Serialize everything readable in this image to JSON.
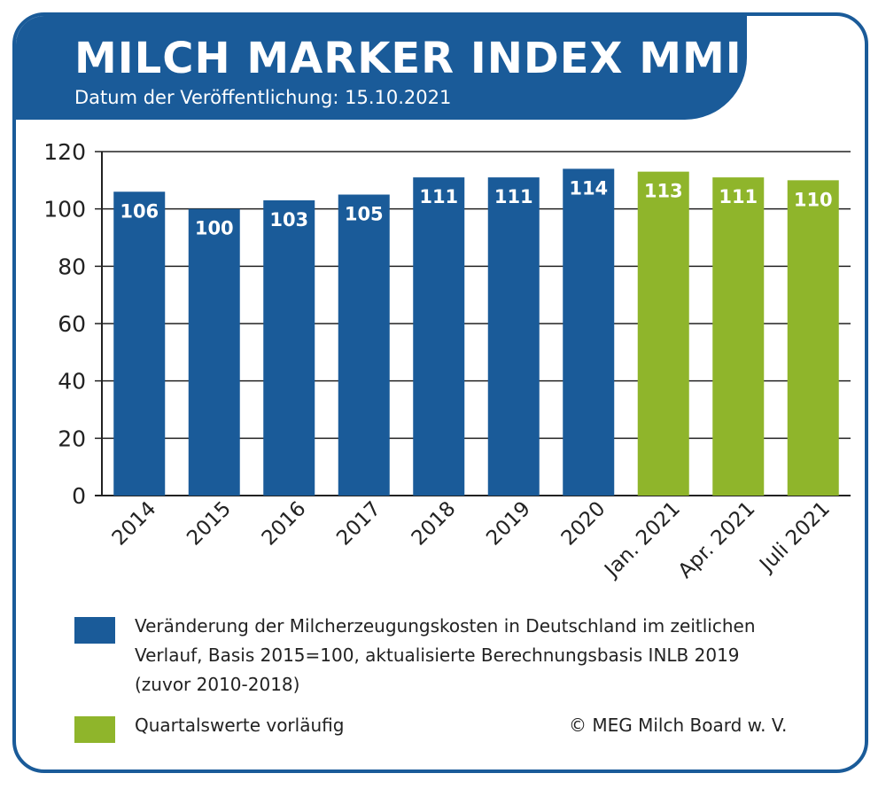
{
  "header": {
    "title": "MILCH MARKER INDEX MMI",
    "subtitle": "Datum der Veröffentlichung: 15.10.2021"
  },
  "colors": {
    "frame": "#1a5b99",
    "actual": "#1a5b99",
    "provisional": "#8fb52b",
    "grid": "#222222"
  },
  "chart_data": {
    "type": "bar",
    "categories": [
      "2014",
      "2015",
      "2016",
      "2017",
      "2018",
      "2019",
      "2020",
      "Jan. 2021",
      "Apr. 2021",
      "Juli 2021"
    ],
    "values": [
      106,
      100,
      103,
      105,
      111,
      111,
      114,
      113,
      111,
      110
    ],
    "data_labels": [
      "106",
      "100",
      "103",
      "105",
      "111",
      "111",
      "114",
      "113",
      "111",
      "110"
    ],
    "bar_colors": [
      "#1a5b99",
      "#1a5b99",
      "#1a5b99",
      "#1a5b99",
      "#1a5b99",
      "#1a5b99",
      "#1a5b99",
      "#8fb52b",
      "#8fb52b",
      "#8fb52b"
    ],
    "ylim": [
      0,
      120
    ],
    "yticks": [
      0,
      20,
      40,
      60,
      80,
      100,
      120
    ],
    "grid": true,
    "title": "MILCH MARKER INDEX MMI",
    "xlabel": "",
    "ylabel": ""
  },
  "legend": [
    {
      "color": "#1a5b99",
      "text_lines": [
        "Veränderung der Milcherzeugungskosten in Deutschland im zeitlichen",
        "Verlauf, Basis 2015=100, aktualisierte Berechnungsbasis INLB 2019",
        "(zuvor 2010-2018)"
      ]
    },
    {
      "color": "#8fb52b",
      "text_lines": [
        "Quartalswerte vorläufig"
      ]
    }
  ],
  "credit": "© MEG Milch Board w. V."
}
